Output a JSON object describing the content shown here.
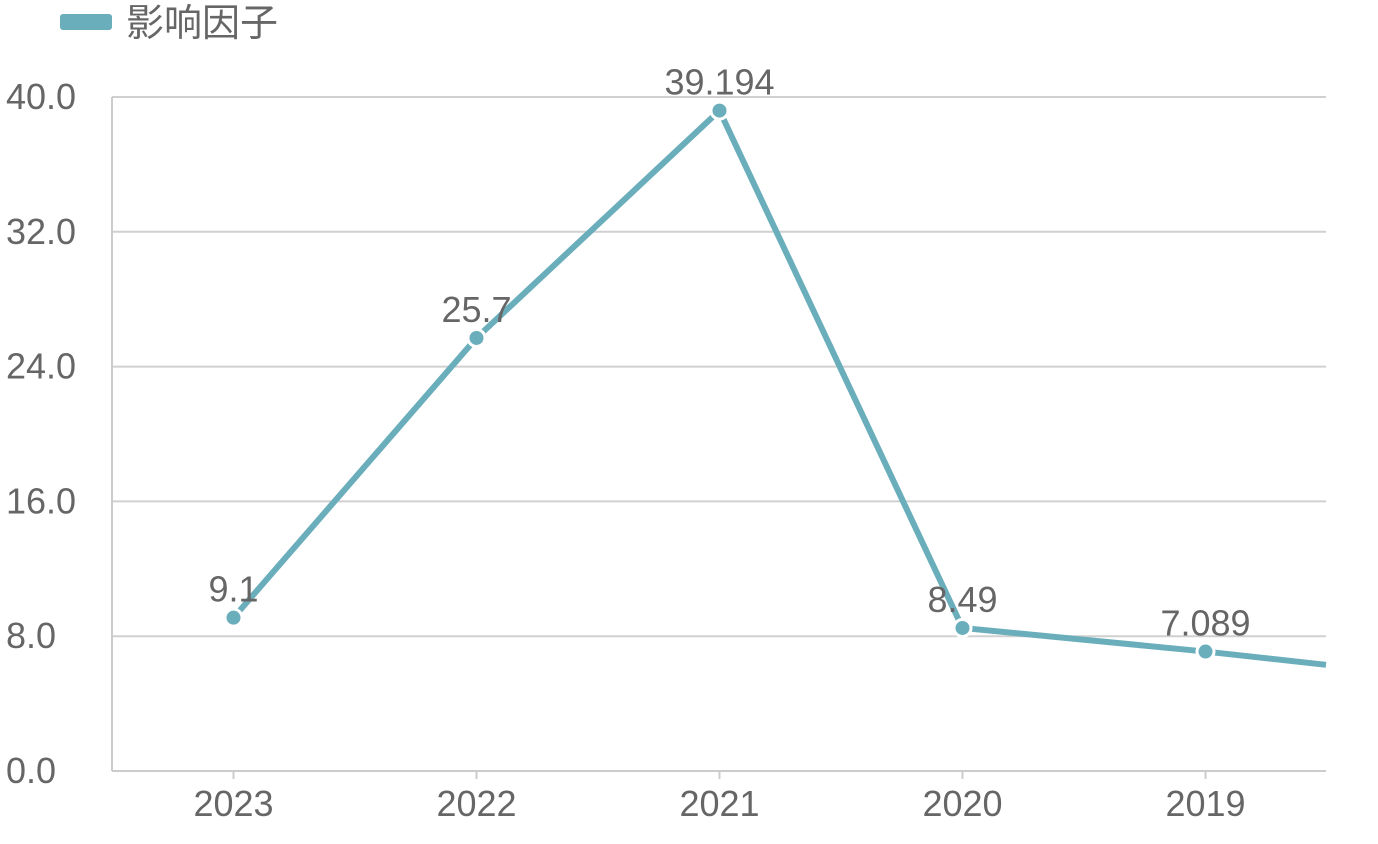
{
  "chart_data": {
    "type": "line",
    "title": "",
    "xlabel": "",
    "ylabel": "",
    "categories": [
      "2023",
      "2022",
      "2021",
      "2020",
      "2019"
    ],
    "series": [
      {
        "name": "影响因子",
        "values": [
          9.1,
          25.7,
          39.194,
          8.49,
          7.089
        ],
        "data_labels": [
          "9.1",
          "25.7",
          "39.194",
          "8.49",
          "7.089"
        ],
        "color": "#6aaebb",
        "continues_right_to": 5.5
      }
    ],
    "ylim": [
      0,
      40
    ],
    "yticks": [
      "0.0",
      "8.0",
      "16.0",
      "24.0",
      "32.0",
      "40.0"
    ],
    "ytick_values": [
      0,
      8,
      16,
      24,
      32,
      40
    ],
    "grid": true,
    "legend": "top-left",
    "colors": {
      "series": "#6aaebb",
      "grid": "#d0d0d0",
      "axis": "#cccccc",
      "text": "#666666"
    }
  }
}
